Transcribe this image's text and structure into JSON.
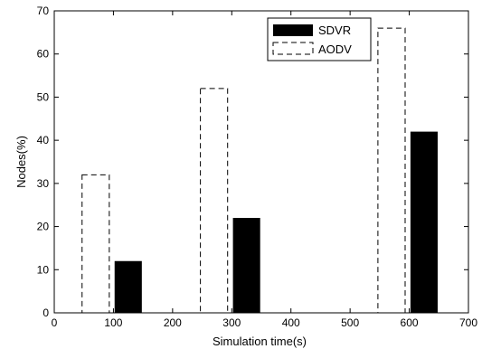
{
  "chart_data": {
    "type": "bar",
    "xlabel": "Simulation time(s)",
    "ylabel": "Nodes(%)",
    "xlim": [
      0,
      700
    ],
    "ylim": [
      0,
      70
    ],
    "xticks": [
      0,
      100,
      200,
      300,
      400,
      500,
      600,
      700
    ],
    "yticks": [
      0,
      10,
      20,
      30,
      40,
      50,
      60,
      70
    ],
    "grid": false,
    "legend_position": "top-right",
    "series": [
      {
        "name": "SDVR",
        "x": [
          125,
          325,
          625
        ],
        "values": [
          12,
          22,
          42
        ],
        "style": "solid",
        "color": "#000000"
      },
      {
        "name": "AODV",
        "x": [
          70,
          270,
          570
        ],
        "values": [
          32,
          52,
          66
        ],
        "style": "dashed",
        "color": "#000000"
      }
    ],
    "bar_width": 46
  }
}
